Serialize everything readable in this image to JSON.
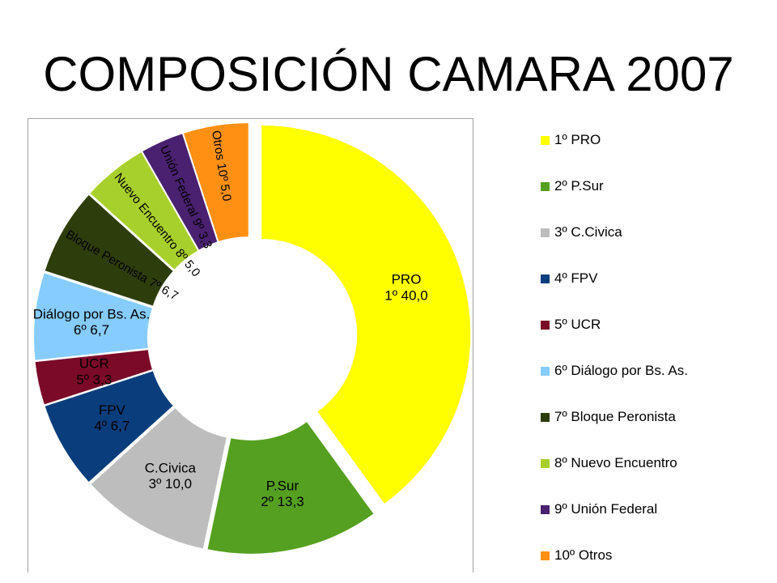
{
  "title": "COMPOSICIÓN CAMARA 2007",
  "chart_data": {
    "type": "donut",
    "title": "COMPOSICIÓN CAMARA 2007",
    "categories": [
      "1º PRO",
      "2º P.Sur",
      "3º C.Civica",
      "4º FPV",
      "5º UCR",
      "6º Diálogo por Bs. As.",
      "7º Bloque Peronista",
      "8º Nuevo Encuentro",
      "9º Unión Federal",
      "10º Otros"
    ],
    "values": [
      40.0,
      13.3,
      10.0,
      6.7,
      3.3,
      6.7,
      6.7,
      5.0,
      3.3,
      5.0
    ],
    "colors": [
      "#FFFF00",
      "#55A020",
      "#BDBDBD",
      "#0A3D7C",
      "#7A0A27",
      "#86CCFF",
      "#2E3D0C",
      "#A8D02C",
      "#4A2070",
      "#FF9014"
    ],
    "data_labels": [
      {
        "name": "PRO",
        "value": "1º 40,0"
      },
      {
        "name": "P.Sur",
        "value": "2º 13,3"
      },
      {
        "name": "C.Civica",
        "value": "3º 10,0"
      },
      {
        "name": "FPV",
        "value": "4º 6,7"
      },
      {
        "name": "UCR",
        "value": "5º 3,3"
      },
      {
        "name": "Diálogo por Bs. As.",
        "value": "6º 6,7"
      },
      {
        "text": "Bloque Peronista 7º 6,7"
      },
      {
        "text": "Nuevo Encuentro 8º 5,0"
      },
      {
        "text": "Unión Federal 9º 3,3"
      },
      {
        "text": "Otros 10º 5,0"
      }
    ],
    "legend": {
      "position": "right",
      "entries": [
        "1º PRO",
        "2º P.Sur",
        "3º C.Civica",
        "4º FPV",
        "5º UCR",
        "6º Diálogo por Bs. As.",
        "7º Bloque Peronista",
        "8º Nuevo Encuentro",
        "9º Unión Federal",
        "10º Otros"
      ]
    }
  }
}
